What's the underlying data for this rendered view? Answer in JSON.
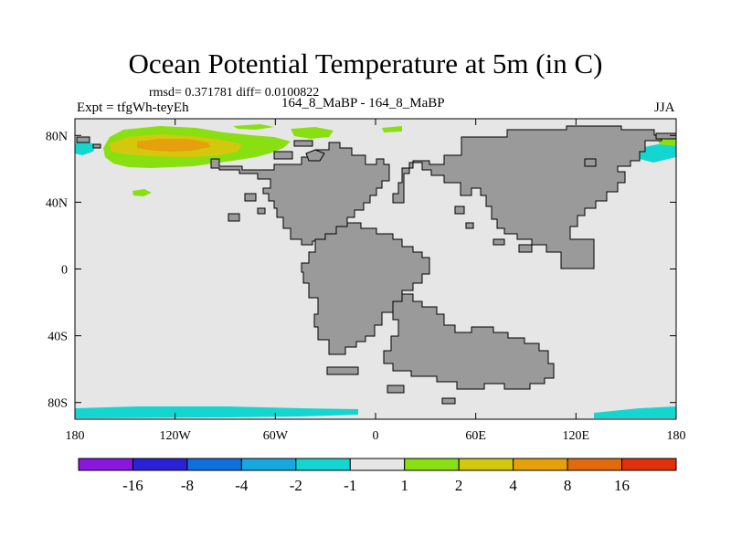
{
  "title": "Ocean Potential Temperature at 5m (in C)",
  "stats_text": "rmsd= 0.371781 diff= 0.0100822",
  "experiment_label": "Expt = tfgWh-teyEh",
  "experiment_name": "164_8_MaBP - 164_8_MaBP",
  "season": "JJA",
  "x_ticks": [
    "180",
    "120W",
    "60W",
    "0",
    "60E",
    "120E",
    "180"
  ],
  "y_ticks": [
    "80N",
    "40N",
    "0",
    "40S",
    "80S"
  ],
  "colorbar": {
    "colors": [
      "#8a16e0",
      "#2a22d6",
      "#1070e0",
      "#18a8e0",
      "#14d6d0",
      "#e6e6e6",
      "#88e010",
      "#d4c80c",
      "#e6a00c",
      "#e06a0c",
      "#e0300c"
    ],
    "labels": [
      "-16",
      "-8",
      "-4",
      "-2",
      "-1",
      "1",
      "2",
      "4",
      "8",
      "16"
    ]
  },
  "map_colors": {
    "ocean_background": "#e6e6e6",
    "land": "#9a9a9a"
  }
}
